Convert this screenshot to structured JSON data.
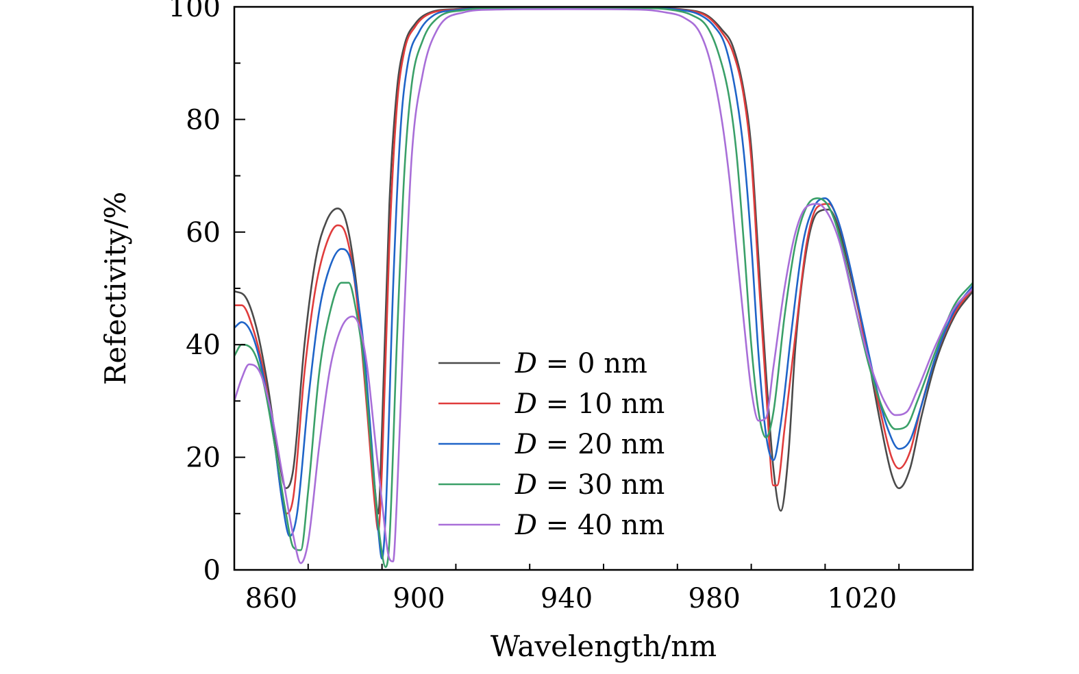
{
  "chart_data": {
    "type": "line",
    "title": "",
    "xlabel": "Wavelength/nm",
    "ylabel": "Refectivity/%",
    "xlim": [
      850,
      1050
    ],
    "ylim": [
      0,
      100
    ],
    "x_major_ticks": [
      860,
      900,
      940,
      980,
      1020
    ],
    "x_tick_labels": [
      "860",
      "900",
      "940",
      "980",
      "1020"
    ],
    "y_major_ticks": [
      0,
      20,
      40,
      60,
      80,
      100
    ],
    "y_tick_labels": [
      "0",
      "20",
      "40",
      "60",
      "80",
      "100"
    ],
    "grid": false,
    "legend_position": "bottom-center",
    "series": [
      {
        "name": "D = 0 nm",
        "legend_var": "D",
        "legend_rest": " = 0 nm",
        "color": "#4a4a4a",
        "points": [
          [
            850,
            49.5
          ],
          [
            853,
            48.5
          ],
          [
            856,
            43
          ],
          [
            859,
            33
          ],
          [
            862,
            20
          ],
          [
            864,
            14.5
          ],
          [
            866,
            18
          ],
          [
            869,
            40
          ],
          [
            872,
            55
          ],
          [
            875,
            62
          ],
          [
            878,
            64.2
          ],
          [
            880,
            62.5
          ],
          [
            882,
            56
          ],
          [
            884,
            45
          ],
          [
            886,
            30
          ],
          [
            888,
            15
          ],
          [
            889,
            10
          ],
          [
            890,
            25
          ],
          [
            892,
            65
          ],
          [
            894,
            85
          ],
          [
            896,
            93
          ],
          [
            899,
            97
          ],
          [
            903,
            99
          ],
          [
            910,
            99.6
          ],
          [
            920,
            99.8
          ],
          [
            940,
            99.8
          ],
          [
            960,
            99.8
          ],
          [
            972,
            99.5
          ],
          [
            978,
            98.5
          ],
          [
            982,
            96
          ],
          [
            985,
            93
          ],
          [
            988,
            85
          ],
          [
            990,
            75
          ],
          [
            992,
            55
          ],
          [
            994,
            35
          ],
          [
            996,
            18
          ],
          [
            998,
            10.5
          ],
          [
            1000,
            20
          ],
          [
            1002,
            40
          ],
          [
            1005,
            57
          ],
          [
            1008,
            63.5
          ],
          [
            1011,
            64
          ],
          [
            1014,
            60
          ],
          [
            1017,
            52
          ],
          [
            1021,
            40
          ],
          [
            1025,
            26
          ],
          [
            1028,
            17
          ],
          [
            1030,
            14.5
          ],
          [
            1033,
            18
          ],
          [
            1036,
            27
          ],
          [
            1040,
            37
          ],
          [
            1045,
            45
          ],
          [
            1050,
            49.5
          ]
        ]
      },
      {
        "name": "D = 10 nm",
        "legend_var": "D",
        "legend_rest": " = 10 nm",
        "color": "#e03c3c",
        "points": [
          [
            850,
            47
          ],
          [
            852,
            47
          ],
          [
            855,
            43
          ],
          [
            858,
            35
          ],
          [
            861,
            22
          ],
          [
            864,
            10
          ],
          [
            866,
            13
          ],
          [
            869,
            35
          ],
          [
            872,
            50
          ],
          [
            875,
            58
          ],
          [
            878,
            61.2
          ],
          [
            880,
            60
          ],
          [
            882,
            54
          ],
          [
            884,
            43
          ],
          [
            886,
            28
          ],
          [
            888,
            12
          ],
          [
            889,
            7
          ],
          [
            890,
            18
          ],
          [
            892,
            58
          ],
          [
            894,
            82
          ],
          [
            896,
            92
          ],
          [
            899,
            96.5
          ],
          [
            903,
            98.8
          ],
          [
            910,
            99.5
          ],
          [
            920,
            99.8
          ],
          [
            940,
            99.8
          ],
          [
            960,
            99.8
          ],
          [
            972,
            99.4
          ],
          [
            978,
            98.3
          ],
          [
            982,
            95.5
          ],
          [
            985,
            92
          ],
          [
            988,
            84
          ],
          [
            990,
            73
          ],
          [
            992,
            52
          ],
          [
            994,
            32
          ],
          [
            996,
            15
          ],
          [
            997,
            15
          ],
          [
            999,
            25
          ],
          [
            1002,
            42
          ],
          [
            1005,
            58
          ],
          [
            1008,
            64.5
          ],
          [
            1011,
            65
          ],
          [
            1014,
            61
          ],
          [
            1017,
            53
          ],
          [
            1021,
            40
          ],
          [
            1025,
            28
          ],
          [
            1028,
            20
          ],
          [
            1030,
            18
          ],
          [
            1033,
            21
          ],
          [
            1036,
            29
          ],
          [
            1040,
            38
          ],
          [
            1045,
            45.5
          ],
          [
            1050,
            50
          ]
        ]
      },
      {
        "name": "D = 20 nm",
        "legend_var": "D",
        "legend_rest": " = 20 nm",
        "color": "#1f64c8",
        "points": [
          [
            850,
            43
          ],
          [
            852,
            44
          ],
          [
            855,
            41.5
          ],
          [
            858,
            34
          ],
          [
            861,
            22
          ],
          [
            863,
            12
          ],
          [
            865,
            6
          ],
          [
            867,
            10
          ],
          [
            870,
            30
          ],
          [
            873,
            46
          ],
          [
            876,
            54
          ],
          [
            879,
            57
          ],
          [
            881,
            56
          ],
          [
            883,
            50
          ],
          [
            885,
            40
          ],
          [
            887,
            24
          ],
          [
            889,
            7
          ],
          [
            890,
            2
          ],
          [
            891,
            10
          ],
          [
            893,
            50
          ],
          [
            895,
            78
          ],
          [
            897,
            90
          ],
          [
            900,
            95.5
          ],
          [
            904,
            98.5
          ],
          [
            910,
            99.4
          ],
          [
            920,
            99.8
          ],
          [
            940,
            99.8
          ],
          [
            960,
            99.8
          ],
          [
            970,
            99.5
          ],
          [
            976,
            98.6
          ],
          [
            980,
            96.5
          ],
          [
            983,
            93
          ],
          [
            986,
            84
          ],
          [
            988,
            74
          ],
          [
            990,
            58
          ],
          [
            992,
            38
          ],
          [
            994,
            24
          ],
          [
            996,
            19.5
          ],
          [
            998,
            26
          ],
          [
            1001,
            43
          ],
          [
            1004,
            58
          ],
          [
            1007,
            64.5
          ],
          [
            1010,
            66
          ],
          [
            1013,
            63
          ],
          [
            1016,
            56
          ],
          [
            1020,
            44
          ],
          [
            1024,
            32
          ],
          [
            1027,
            25
          ],
          [
            1030,
            21.5
          ],
          [
            1033,
            23
          ],
          [
            1036,
            29
          ],
          [
            1040,
            38
          ],
          [
            1045,
            46
          ],
          [
            1050,
            50.5
          ]
        ]
      },
      {
        "name": "D = 30 nm",
        "legend_var": "D",
        "legend_rest": " = 30 nm",
        "color": "#3aa068",
        "points": [
          [
            850,
            38
          ],
          [
            852,
            40
          ],
          [
            855,
            39
          ],
          [
            858,
            33
          ],
          [
            861,
            22
          ],
          [
            864,
            10
          ],
          [
            866,
            4
          ],
          [
            868,
            3.5
          ],
          [
            870,
            14
          ],
          [
            873,
            35
          ],
          [
            876,
            46
          ],
          [
            879,
            51
          ],
          [
            881,
            51
          ],
          [
            883,
            46
          ],
          [
            885,
            37
          ],
          [
            887,
            22
          ],
          [
            889,
            8
          ],
          [
            891,
            0.5
          ],
          [
            892,
            5
          ],
          [
            894,
            40
          ],
          [
            896,
            70
          ],
          [
            898,
            86
          ],
          [
            901,
            94
          ],
          [
            905,
            98
          ],
          [
            912,
            99.4
          ],
          [
            920,
            99.8
          ],
          [
            940,
            99.8
          ],
          [
            960,
            99.8
          ],
          [
            968,
            99.5
          ],
          [
            974,
            98.5
          ],
          [
            978,
            96.5
          ],
          [
            981,
            92
          ],
          [
            984,
            84
          ],
          [
            986,
            74
          ],
          [
            988,
            58
          ],
          [
            990,
            40
          ],
          [
            992,
            28
          ],
          [
            994,
            23.5
          ],
          [
            996,
            28
          ],
          [
            999,
            45
          ],
          [
            1002,
            58
          ],
          [
            1005,
            64.5
          ],
          [
            1008,
            66
          ],
          [
            1011,
            64.5
          ],
          [
            1014,
            59
          ],
          [
            1018,
            47
          ],
          [
            1022,
            36
          ],
          [
            1026,
            28
          ],
          [
            1029,
            25
          ],
          [
            1032,
            25.5
          ],
          [
            1035,
            30
          ],
          [
            1040,
            39
          ],
          [
            1045,
            47
          ],
          [
            1050,
            51
          ]
        ]
      },
      {
        "name": "D = 40 nm",
        "legend_var": "D",
        "legend_rest": " = 40 nm",
        "color": "#a86ed8",
        "points": [
          [
            850,
            30
          ],
          [
            852,
            34
          ],
          [
            854,
            36.5
          ],
          [
            857,
            35
          ],
          [
            860,
            28
          ],
          [
            863,
            17
          ],
          [
            866,
            6
          ],
          [
            868,
            1.2
          ],
          [
            870,
            5
          ],
          [
            873,
            22
          ],
          [
            876,
            36
          ],
          [
            879,
            43
          ],
          [
            882,
            45
          ],
          [
            884,
            43
          ],
          [
            886,
            36
          ],
          [
            888,
            24
          ],
          [
            890,
            12
          ],
          [
            892,
            2
          ],
          [
            893,
            1.5
          ],
          [
            894,
            12
          ],
          [
            896,
            45
          ],
          [
            898,
            73
          ],
          [
            901,
            88
          ],
          [
            905,
            96
          ],
          [
            912,
            99
          ],
          [
            920,
            99.5
          ],
          [
            940,
            99.6
          ],
          [
            960,
            99.5
          ],
          [
            966,
            99.1
          ],
          [
            972,
            98
          ],
          [
            976,
            95.5
          ],
          [
            979,
            90
          ],
          [
            982,
            80
          ],
          [
            984,
            70
          ],
          [
            986,
            57
          ],
          [
            988,
            44
          ],
          [
            990,
            32
          ],
          [
            992,
            26.5
          ],
          [
            994,
            27
          ],
          [
            996,
            36
          ],
          [
            999,
            50
          ],
          [
            1002,
            60
          ],
          [
            1005,
            64.5
          ],
          [
            1008,
            65
          ],
          [
            1011,
            63
          ],
          [
            1014,
            58
          ],
          [
            1018,
            47
          ],
          [
            1022,
            37
          ],
          [
            1026,
            30
          ],
          [
            1029,
            27.5
          ],
          [
            1032,
            28
          ],
          [
            1035,
            32
          ],
          [
            1040,
            40
          ],
          [
            1045,
            46.5
          ],
          [
            1050,
            50
          ]
        ]
      }
    ]
  }
}
